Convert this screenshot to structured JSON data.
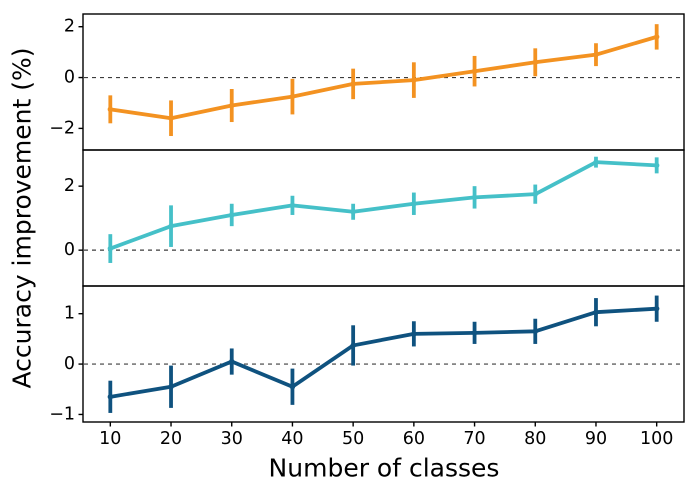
{
  "chart_data": {
    "type": "line",
    "title": "",
    "xlabel": "Number of classes",
    "ylabel": "Accuracy improvement (%)",
    "x": [
      10,
      20,
      30,
      40,
      50,
      60,
      70,
      80,
      90,
      100
    ],
    "xlim": [
      5.5,
      104.5
    ],
    "grid": false,
    "legend": "none",
    "background": "#ffffff",
    "axis_color": "#000000",
    "zero_line": {
      "y": 0,
      "style": "dashed",
      "color": "#3c3c3c"
    },
    "error_bars": true,
    "panels": [
      {
        "position": "top",
        "color": "#f39221",
        "ylim": [
          -2.85,
          2.5
        ],
        "yticks": [
          -2,
          0,
          2
        ],
        "values": [
          -1.25,
          -1.6,
          -1.1,
          -0.75,
          -0.25,
          -0.1,
          0.25,
          0.6,
          0.9,
          1.6
        ],
        "errors": [
          0.55,
          0.7,
          0.65,
          0.7,
          0.6,
          0.7,
          0.6,
          0.55,
          0.45,
          0.5
        ]
      },
      {
        "position": "middle",
        "color": "#45c0c8",
        "ylim": [
          -1.12,
          3.13
        ],
        "yticks": [
          0,
          2
        ],
        "values": [
          0.05,
          0.75,
          1.1,
          1.4,
          1.2,
          1.45,
          1.65,
          1.75,
          2.75,
          2.65
        ],
        "errors": [
          0.45,
          0.65,
          0.35,
          0.3,
          0.25,
          0.35,
          0.35,
          0.3,
          0.17,
          0.25
        ]
      },
      {
        "position": "bottom",
        "color": "#0f527f",
        "ylim": [
          -1.15,
          1.55
        ],
        "yticks": [
          -1,
          0,
          1
        ],
        "values": [
          -0.65,
          -0.45,
          0.05,
          -0.45,
          0.37,
          0.6,
          0.62,
          0.65,
          1.03,
          1.1
        ],
        "errors": [
          0.32,
          0.42,
          0.26,
          0.36,
          0.4,
          0.25,
          0.22,
          0.25,
          0.28,
          0.26
        ]
      }
    ]
  }
}
